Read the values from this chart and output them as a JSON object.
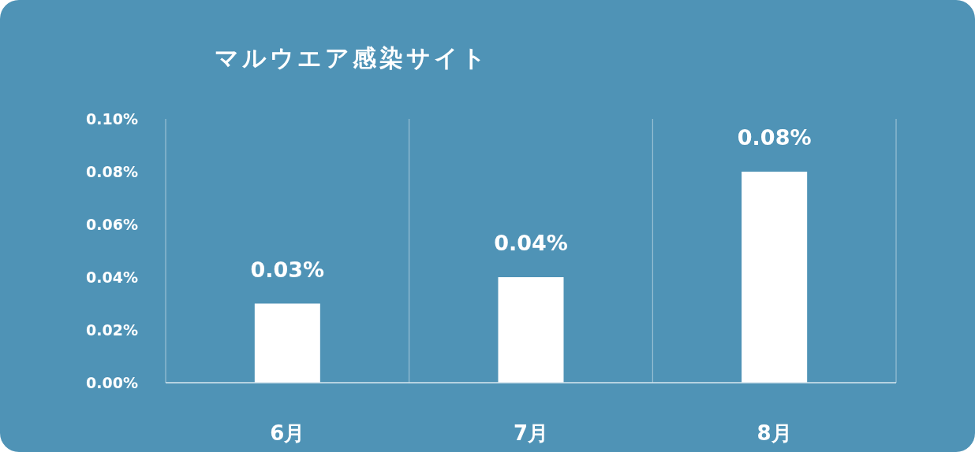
{
  "chart_data": {
    "type": "bar",
    "title": "マルウエア感染サイト",
    "categories": [
      "6月",
      "7月",
      "8月"
    ],
    "values": [
      0.03,
      0.04,
      0.08
    ],
    "value_labels": [
      "0.03%",
      "0.04%",
      "0.08%"
    ],
    "color": "#ffffff",
    "ylim": [
      0,
      0.1
    ],
    "yticks": [
      {
        "value": 0,
        "label": "0.00%"
      },
      {
        "value": 0.02,
        "label": "0.02%"
      },
      {
        "value": 0.04,
        "label": "0.04%"
      },
      {
        "value": 0.06,
        "label": "0.06%"
      },
      {
        "value": 0.08,
        "label": "0.08%"
      },
      {
        "value": 0.1,
        "label": "0.10%"
      }
    ],
    "grid": "x"
  }
}
